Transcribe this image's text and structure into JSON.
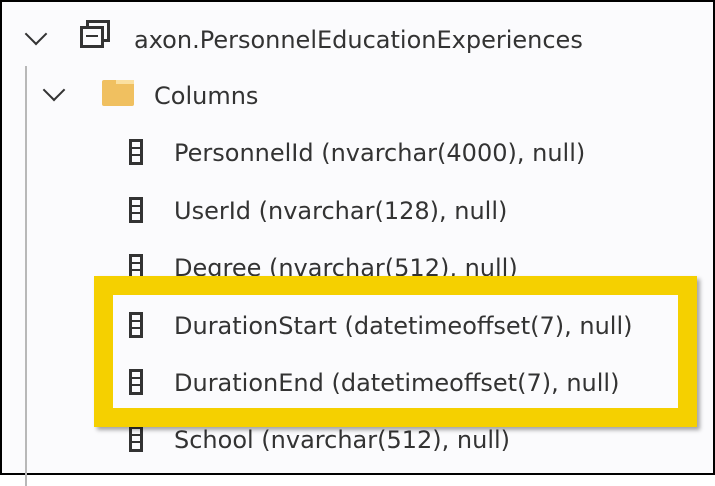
{
  "tree": {
    "table": {
      "label": "axon.PersonnelEducationExperiences",
      "icon": "table-icon"
    },
    "folder": {
      "label": "Columns",
      "icon": "folder-icon",
      "color": "#f0c060"
    },
    "columns": [
      {
        "label": "PersonnelId (nvarchar(4000), null)"
      },
      {
        "label": "UserId (nvarchar(128), null)"
      },
      {
        "label": "Degree (nvarchar(512), null)"
      },
      {
        "label": "DurationStart (datetimeoffset(7), null)"
      },
      {
        "label": "DurationEnd (datetimeoffset(7), null)"
      },
      {
        "label": "School (nvarchar(512), null)"
      }
    ]
  },
  "highlight": {
    "color": "#f5d000",
    "items": [
      "DurationStart",
      "DurationEnd"
    ]
  }
}
